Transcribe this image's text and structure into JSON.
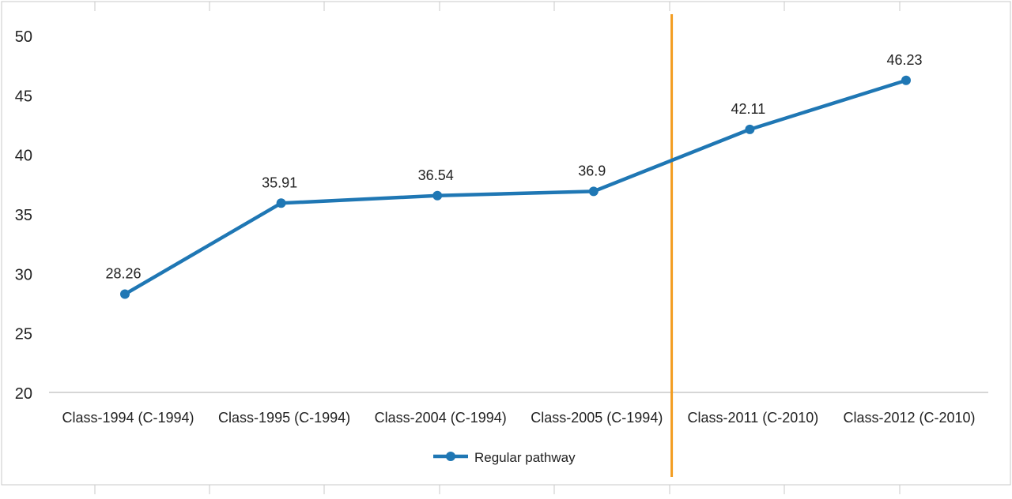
{
  "chart_data": {
    "type": "line",
    "title": "",
    "xlabel": "",
    "ylabel": "",
    "categories": [
      "Class-1994 (C-1994)",
      "Class-1995 (C-1994)",
      "Class-2004 (C-1994)",
      "Class-2005 (C-1994)",
      "Class-2011 (C-2010)",
      "Class-2012 (C-2010)"
    ],
    "series": [
      {
        "name": "Regular pathway",
        "color": "#1f77b4",
        "values": [
          28.26,
          35.91,
          36.54,
          36.9,
          42.11,
          46.23
        ],
        "labels": [
          "28.26",
          "35.91",
          "36.54",
          "36.9",
          "42.11",
          "46.23"
        ]
      }
    ],
    "ylim": [
      20,
      50
    ],
    "yticks": [
      20,
      25,
      30,
      35,
      40,
      45,
      50
    ],
    "ytick_labels": [
      "20",
      "25",
      "30",
      "35",
      "40",
      "45",
      "50"
    ],
    "legend_position": "bottom",
    "grid": false,
    "annotations": [
      {
        "type": "vertical-line",
        "between_categories": [
          "Class-2005 (C-1994)",
          "Class-2011 (C-2010)"
        ],
        "color": "#f39c1f"
      }
    ]
  }
}
